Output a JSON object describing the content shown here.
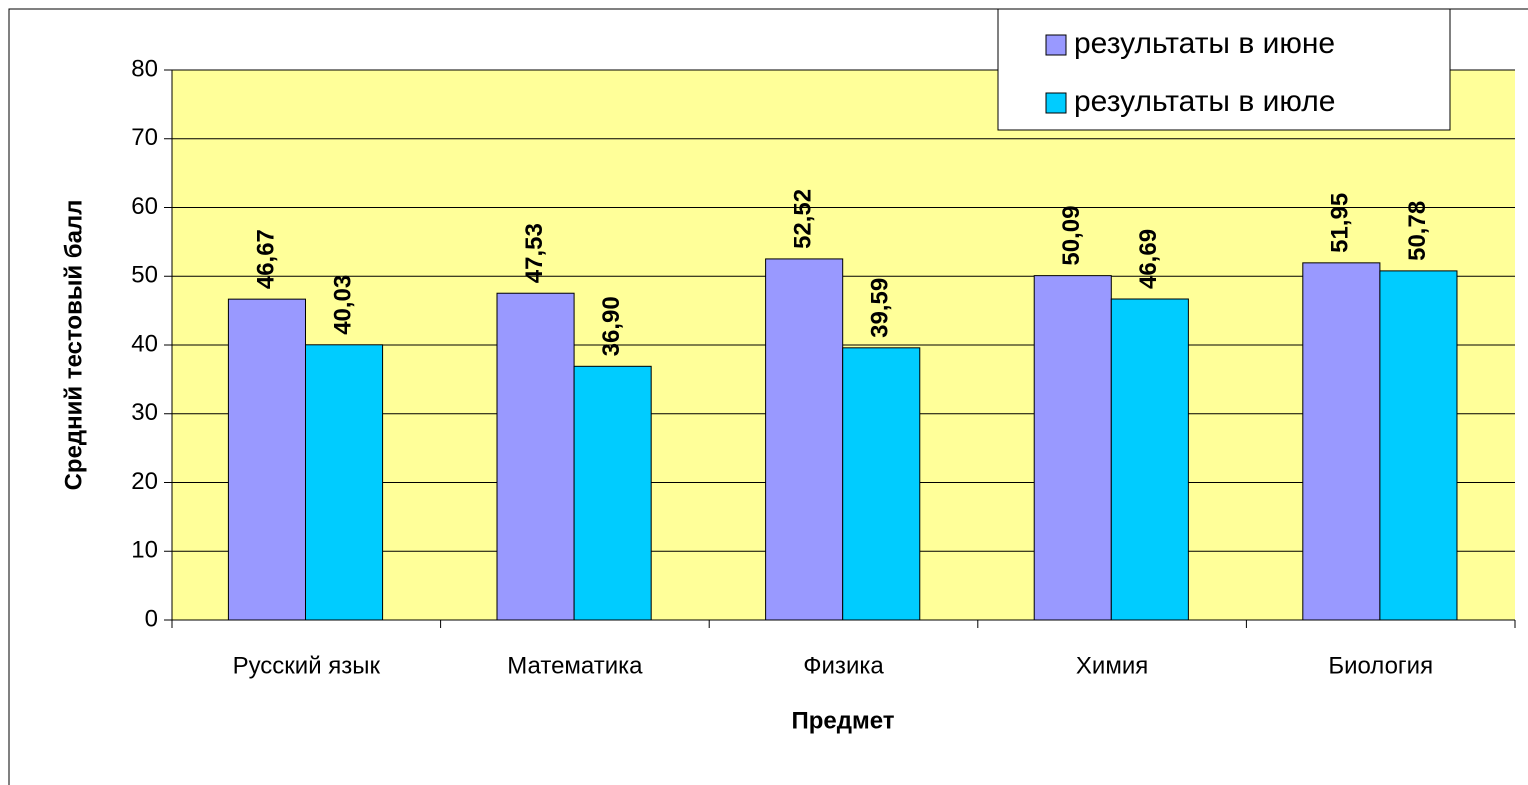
{
  "chart_data": {
    "type": "bar",
    "x_label": "Предмет",
    "y_label": "Средний тестовый балл",
    "categories": [
      "Русский язык",
      "Математика",
      "Физика",
      "Химия",
      "Биология"
    ],
    "series": [
      {
        "name": "результаты в июне",
        "color": "#9999ff",
        "values": [
          46.67,
          47.53,
          52.52,
          50.09,
          51.95
        ],
        "value_labels": [
          "46,67",
          "47,53",
          "52,52",
          "50,09",
          "51,95"
        ]
      },
      {
        "name": "результаты в июле",
        "color": "#00ccff",
        "values": [
          40.03,
          36.9,
          39.59,
          46.69,
          50.78
        ],
        "value_labels": [
          "40,03",
          "36,90",
          "39,59",
          "46,69",
          "50,78"
        ]
      }
    ],
    "ylim": [
      0,
      80
    ],
    "yticks": [
      0,
      10,
      20,
      30,
      40,
      50,
      60,
      70,
      80
    ],
    "grid": true,
    "legend": "upper right",
    "plot_background": "#ffff99"
  }
}
